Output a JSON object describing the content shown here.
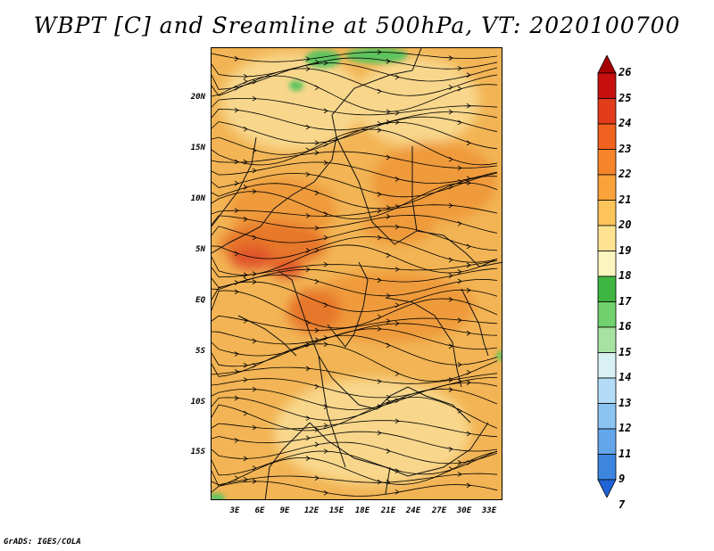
{
  "title": "WBPT [C] and Sreamline at 500hPa, VT: 2020100700",
  "map": {
    "lat_labels": [
      "20N",
      "15N",
      "10N",
      "5N",
      "EQ",
      "5S",
      "10S",
      "15S"
    ],
    "lon_labels": [
      "3E",
      "6E",
      "9E",
      "12E",
      "15E",
      "18E",
      "21E",
      "24E",
      "27E",
      "30E",
      "33E"
    ],
    "fill_colors": {
      "base": "#f2b454",
      "light": "#f8d78c",
      "orange": "#ef9a3a",
      "deep_orange": "#e7772c",
      "red_orange": "#e0562a",
      "green": "#5ec45e"
    }
  },
  "colorbar": {
    "labels": [
      "26",
      "25",
      "24",
      "23",
      "22",
      "21",
      "20",
      "19",
      "18",
      "17",
      "16",
      "15",
      "14",
      "13",
      "12",
      "11",
      "9",
      "7"
    ],
    "colors": [
      "#a50000",
      "#c80f0f",
      "#e23c1a",
      "#f0621f",
      "#f5852a",
      "#f9a33a",
      "#fcc45a",
      "#fde391",
      "#fdf5c0",
      "#3fb641",
      "#70d16e",
      "#a8e2a2",
      "#d9f1f2",
      "#b4dcf6",
      "#8cc4f1",
      "#63a6ea",
      "#3d86e0",
      "#1f63d6"
    ]
  },
  "credit": "GrADS: IGES/COLA"
}
